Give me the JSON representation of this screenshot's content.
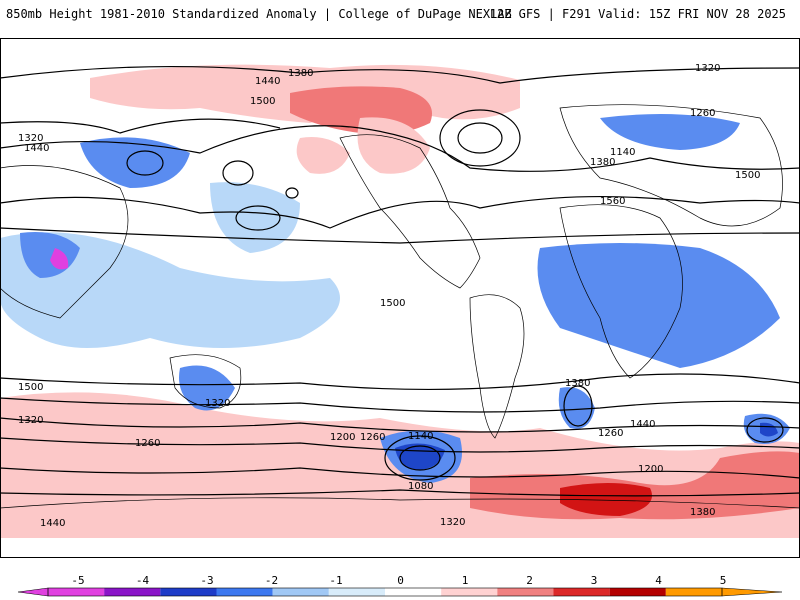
{
  "header": {
    "title": "850mb Height 1981-2010 Standardized Anomaly | College of DuPage NEXLAB",
    "run_info": "12Z GFS | F291 Valid: 15Z FRI NOV 28 2025"
  },
  "contour_labels": [
    "1380",
    "1320",
    "1440",
    "1500",
    "1560",
    "1260",
    "1200",
    "1140",
    "1080"
  ],
  "colorbar": {
    "ticks": [
      "-5",
      "-4",
      "-3",
      "-2",
      "-1",
      "0",
      "1",
      "2",
      "3",
      "4",
      "5"
    ],
    "colors": [
      "#e040e0",
      "#8a14c8",
      "#1e3cc8",
      "#3c78f0",
      "#a0c8f5",
      "#d8ecfa",
      "#ffffff",
      "#ffd2d2",
      "#f08080",
      "#dc2828",
      "#b40000",
      "#ff9a00"
    ]
  },
  "map_colors": {
    "weak_pos": "#fcc8c8",
    "mod_pos": "#f07878",
    "strong_pos": "#d21414",
    "weak_neg": "#b8d8f8",
    "mod_neg": "#5a8cf0",
    "strong_neg": "#1e46c8",
    "extreme_neg": "#e040e0"
  }
}
